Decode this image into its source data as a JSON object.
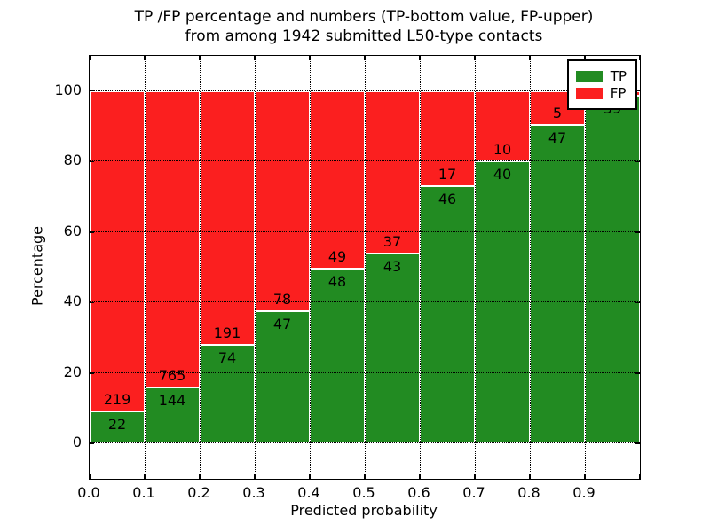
{
  "figure": {
    "title_line1": "TP /FP percentage and numbers (TP-bottom value, FP-upper)",
    "title_line2": "from among 1942 submitted L50-type contacts"
  },
  "axes": {
    "xlabel": "Predicted probability",
    "ylabel": "Percentage",
    "x_tick_labels": [
      "0.0",
      "0.1",
      "0.2",
      "0.3",
      "0.4",
      "0.5",
      "0.6",
      "0.7",
      "0.8",
      "0.9"
    ],
    "y_tick_labels": [
      "0",
      "20",
      "40",
      "60",
      "80",
      "100"
    ],
    "y_tick_values": [
      0,
      20,
      40,
      60,
      80,
      100
    ],
    "xlim": [
      0.0,
      1.0
    ],
    "ylim": [
      -10,
      110
    ]
  },
  "legend": {
    "position": "upper right",
    "items": [
      {
        "label": "TP",
        "color": "#228b22"
      },
      {
        "label": "FP",
        "color": "#fb1f1f"
      }
    ]
  },
  "chart_data": {
    "type": "bar",
    "stacked": true,
    "title": "TP /FP percentage and numbers (TP-bottom value, FP-upper) from among 1942 submitted L50-type contacts",
    "xlabel": "Predicted probability",
    "ylabel": "Percentage",
    "xlim": [
      0.0,
      1.0
    ],
    "ylim": [
      -10,
      110
    ],
    "grid": true,
    "legend_position": "upper right",
    "bin_edges": [
      0.0,
      0.1,
      0.2,
      0.3,
      0.4,
      0.5,
      0.6,
      0.7,
      0.8,
      0.9,
      1.0
    ],
    "series": [
      {
        "name": "TP",
        "color": "#228b22",
        "counts": [
          22,
          144,
          74,
          47,
          48,
          43,
          46,
          40,
          47,
          59
        ]
      },
      {
        "name": "FP",
        "color": "#fb1f1f",
        "counts": [
          219,
          765,
          191,
          78,
          49,
          37,
          17,
          10,
          5,
          null
        ]
      }
    ],
    "tp_percent": [
      9.1,
      15.8,
      27.9,
      37.6,
      49.5,
      53.8,
      73.0,
      80.0,
      90.4,
      98.8
    ]
  }
}
